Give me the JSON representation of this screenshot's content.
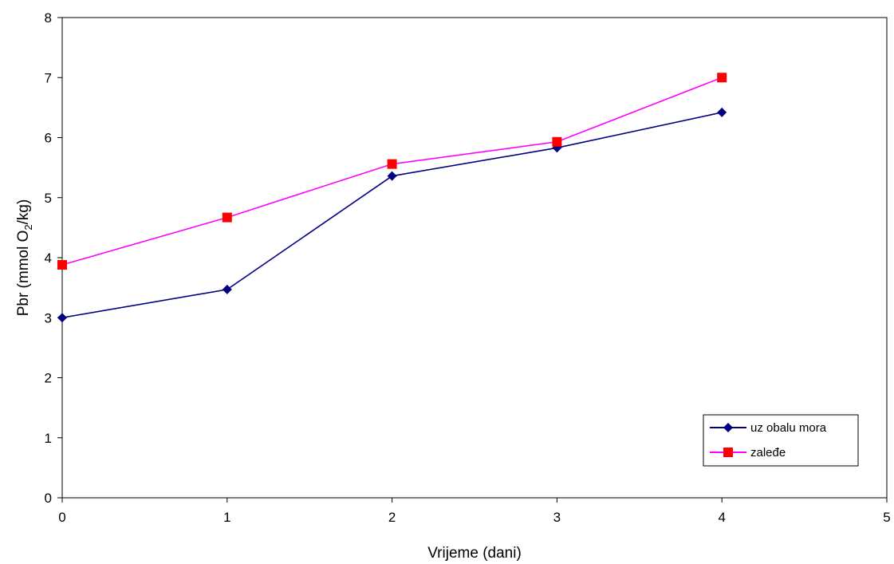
{
  "chart_data": {
    "type": "line",
    "title": "",
    "xlabel": "Vrijeme (dani)",
    "ylabel": {
      "prefix": "Pbr (mmol O",
      "sub": "2",
      "suffix": "/kg)"
    },
    "xlim": [
      0,
      5
    ],
    "ylim": [
      0,
      8
    ],
    "xticks": [
      "0",
      "1",
      "2",
      "3",
      "4",
      "5"
    ],
    "yticks": [
      "0",
      "1",
      "2",
      "3",
      "4",
      "5",
      "6",
      "7",
      "8"
    ],
    "grid": false,
    "legend_position": "bottom-right",
    "series": [
      {
        "name": "uz obalu mora",
        "color": "#000080",
        "marker": "diamond",
        "x": [
          0,
          1,
          2,
          3,
          4
        ],
        "y": [
          3.0,
          3.47,
          5.36,
          5.83,
          6.42
        ]
      },
      {
        "name": "zaleđe",
        "color": "#ff00ff",
        "marker_color": "#ff0000",
        "marker": "square",
        "x": [
          0,
          1,
          2,
          3,
          4
        ],
        "y": [
          3.88,
          4.67,
          5.56,
          5.93,
          7.0
        ]
      }
    ]
  }
}
